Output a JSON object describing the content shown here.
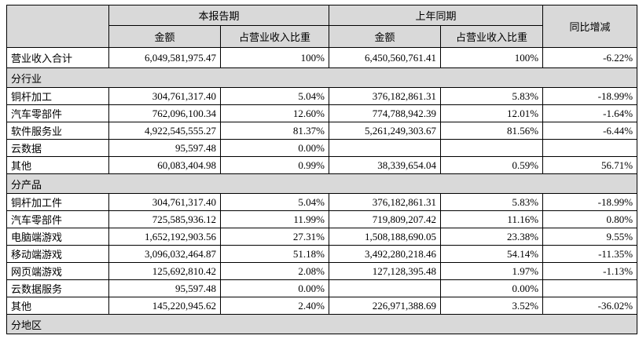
{
  "table": {
    "header": {
      "current": "本报告期",
      "previous": "上年同期",
      "yoy": "同比增减",
      "sub": [
        "金额",
        "占营业收入比重",
        "金额",
        "占营业收入比重"
      ]
    },
    "rows": [
      [
        "营业收入合计",
        "6,049,581,975.47",
        "100%",
        "6,450,560,761.41",
        "100%",
        "-6.22%"
      ],
      [
        "分行业"
      ],
      [
        "铜杆加工",
        "304,761,317.40",
        "5.04%",
        "376,182,861.31",
        "5.83%",
        "-18.99%"
      ],
      [
        "汽车零部件",
        "762,096,100.34",
        "12.60%",
        "774,788,942.39",
        "12.01%",
        "-1.64%"
      ],
      [
        "软件服务业",
        "4,922,545,555.27",
        "81.37%",
        "5,261,249,303.67",
        "81.56%",
        "-6.44%"
      ],
      [
        "云数据",
        "95,597.48",
        "0.00%",
        null,
        null,
        null
      ],
      [
        "其他",
        "60,083,404.98",
        "0.99%",
        "38,339,654.04",
        "0.59%",
        "56.71%"
      ],
      [
        "分产品"
      ],
      [
        "铜杆加工件",
        "304,761,317.40",
        "5.04%",
        "376,182,861.31",
        "5.83%",
        "-18.99%"
      ],
      [
        "汽车零部件",
        "725,585,936.12",
        "11.99%",
        "719,809,207.42",
        "11.16%",
        "0.80%"
      ],
      [
        "电脑端游戏",
        "1,652,192,903.56",
        "27.31%",
        "1,508,188,690.05",
        "23.38%",
        "9.55%"
      ],
      [
        "移动端游戏",
        "3,096,032,464.87",
        "51.18%",
        "3,492,280,218.46",
        "54.14%",
        "-11.35%"
      ],
      [
        "网页端游戏",
        "125,692,810.42",
        "2.08%",
        "127,128,395.48",
        "1.97%",
        "-1.13%"
      ],
      [
        "云数据服务",
        "95,597.48",
        "0.00%",
        null,
        "0.00%",
        null
      ],
      [
        "其他",
        "145,220,945.62",
        "2.40%",
        "226,971,388.69",
        "3.52%",
        "-36.02%"
      ],
      [
        "分地区"
      ]
    ]
  }
}
